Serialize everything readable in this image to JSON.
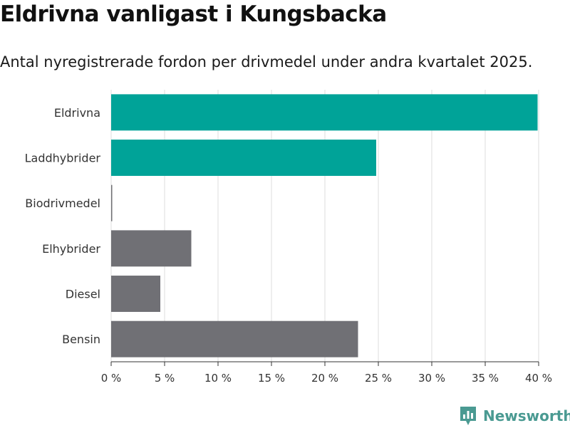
{
  "header": {
    "title": "Eldrivna vanligast i Kungsbacka",
    "subtitle": "Antal nyregistrerade fordon per drivmedel under andra kvartalet 2025."
  },
  "colors": {
    "highlight": "#00a398",
    "default": "#707075",
    "grid": "#dddddd",
    "axis": "#333333"
  },
  "chart_data": {
    "type": "bar",
    "orientation": "horizontal",
    "categories": [
      "Eldrivna",
      "Laddhybrider",
      "Biodrivmedel",
      "Elhybrider",
      "Diesel",
      "Bensin"
    ],
    "values": [
      39.9,
      24.8,
      0.1,
      7.5,
      4.6,
      23.1
    ],
    "highlighted": [
      true,
      true,
      false,
      false,
      false,
      false
    ],
    "xlim": [
      0,
      40
    ],
    "xticks": [
      0,
      5,
      10,
      15,
      20,
      25,
      30,
      35,
      40
    ],
    "tick_labels": [
      "0 %",
      "5 %",
      "10 %",
      "15 %",
      "20 %",
      "25 %",
      "30 %",
      "35 %",
      "40 %"
    ],
    "xlabel": "",
    "ylabel": "",
    "grid": "vertical",
    "legend": "none"
  },
  "brand": {
    "name": "Newsworthy",
    "icon": "bar-chart-speech-bubble-icon"
  }
}
